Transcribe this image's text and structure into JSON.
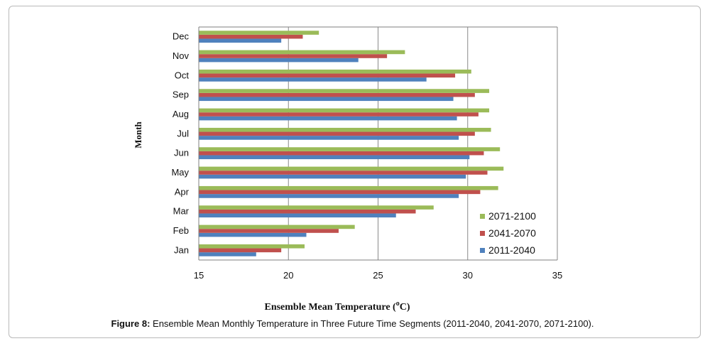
{
  "chart_data": {
    "type": "bar",
    "orientation": "horizontal",
    "categories": [
      "Jan",
      "Feb",
      "Mar",
      "Apr",
      "May",
      "Jun",
      "Jul",
      "Aug",
      "Sep",
      "Oct",
      "Nov",
      "Dec"
    ],
    "series": [
      {
        "name": "2011-2040",
        "color": "#4f81bd",
        "values": [
          18.2,
          21.0,
          26.0,
          29.5,
          29.9,
          30.1,
          29.5,
          29.4,
          29.2,
          27.7,
          23.9,
          19.6
        ]
      },
      {
        "name": "2041-2070",
        "color": "#c0504d",
        "values": [
          19.6,
          22.8,
          27.1,
          30.7,
          31.1,
          30.9,
          30.4,
          30.6,
          30.4,
          29.3,
          25.5,
          20.8
        ]
      },
      {
        "name": "2071-2100",
        "color": "#9bbb59",
        "values": [
          20.9,
          23.7,
          28.1,
          31.7,
          32.0,
          31.8,
          31.3,
          31.2,
          31.2,
          30.2,
          26.5,
          21.7
        ]
      }
    ],
    "xlabel": "Ensemble Mean Temperature (",
    "xlabel_sup": "o",
    "xlabel_unit": "C)",
    "ylabel": "Month",
    "xlim": [
      15,
      35
    ],
    "xticks": [
      "15",
      "20",
      "25",
      "30",
      "35"
    ],
    "grid": "vertical major gridlines",
    "legend_position": "bottom-right inside plot",
    "legend_order": [
      "2071-2100",
      "2041-2070",
      "2011-2040"
    ]
  },
  "caption": {
    "label": "Figure 8:",
    "text": " Ensemble Mean Monthly Temperature in Three Future Time Segments (2011-2040, 2041-2070, 2071-2100)."
  }
}
